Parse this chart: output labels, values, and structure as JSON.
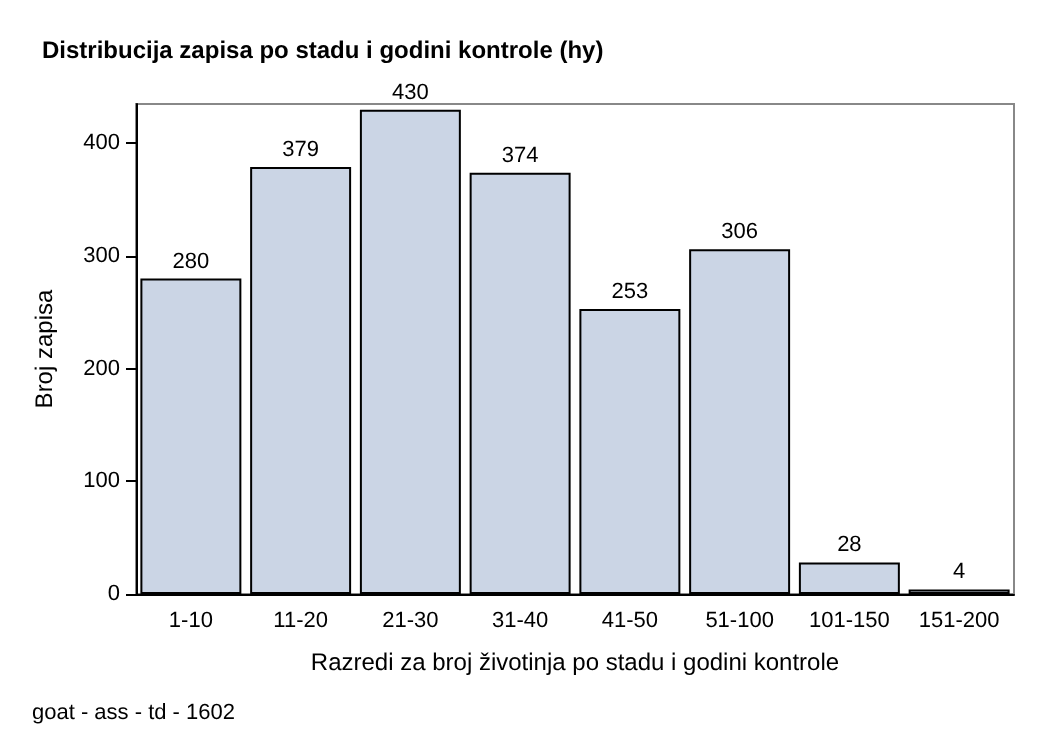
{
  "chart_data": {
    "type": "bar",
    "title": "Distribucija zapisa po stadu i godini kontrole (hy)",
    "xlabel": "Razredi za broj životinja po stadu i godini kontrole",
    "ylabel": "Broj zapisa",
    "categories": [
      "1-10",
      "11-20",
      "21-30",
      "31-40",
      "41-50",
      "51-100",
      "101-150",
      "151-200"
    ],
    "values": [
      280,
      379,
      430,
      374,
      253,
      306,
      28,
      4
    ],
    "color": "#cbd5e5",
    "ylim": [
      0,
      435
    ],
    "yticks": [
      0,
      100,
      200,
      300,
      400
    ],
    "grid": false,
    "data_labels": true,
    "annotations": [
      "goat - ass - td - 1602"
    ]
  }
}
